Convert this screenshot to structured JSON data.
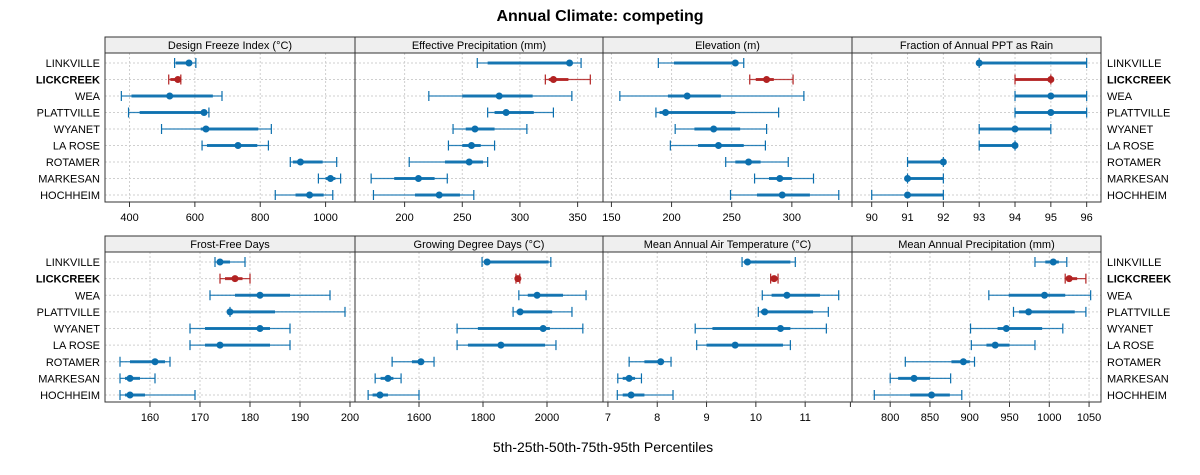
{
  "chart_data": {
    "type": "dot-whisker",
    "title": "Annual Climate: competing",
    "xlabel": "5th-25th-50th-75th-95th Percentiles",
    "stations": [
      "LINKVILLE",
      "LICKCREEK",
      "WEA",
      "PLATTVILLE",
      "WYANET",
      "LA ROSE",
      "ROTAMER",
      "MARKESAN",
      "HOCHHEIM"
    ],
    "highlight_station": "LICKCREEK",
    "colors": {
      "normal": "#0b6fae",
      "highlight": "#b22222",
      "strip_bg": "#efefef",
      "grid": "#cfcfcf"
    },
    "grid": true,
    "panels": [
      {
        "name": "Design Freeze Index (°C)",
        "xlim": [
          325,
          1090
        ],
        "ticks": [
          400,
          600,
          800,
          1000
        ],
        "tick_labels": [
          "400",
          "600",
          "800",
          "1000"
        ],
        "values": [
          [
            538,
            542,
            582,
            590,
            603
          ],
          [
            520,
            525,
            548,
            555,
            557
          ],
          [
            375,
            406,
            523,
            655,
            683
          ],
          [
            397,
            431,
            628,
            633,
            643
          ],
          [
            498,
            618,
            634,
            794,
            834
          ],
          [
            622,
            637,
            732,
            791,
            825
          ],
          [
            892,
            900,
            923,
            991,
            1034
          ],
          [
            978,
            1000,
            1015,
            1030,
            1046
          ],
          [
            846,
            908,
            951,
            994,
            1022
          ]
        ]
      },
      {
        "name": "Effective Precipitation (mm)",
        "xlim": [
          157,
          372
        ],
        "ticks": [
          200,
          250,
          300,
          350
        ],
        "tick_labels": [
          "200",
          "250",
          "300",
          "350"
        ],
        "values": [
          [
            263,
            272,
            343,
            345,
            353
          ],
          [
            322,
            325,
            329,
            342,
            361
          ],
          [
            221,
            250,
            282,
            311,
            345
          ],
          [
            272,
            278,
            288,
            312,
            329
          ],
          [
            242,
            253,
            261,
            278,
            306
          ],
          [
            238,
            250,
            258,
            266,
            278
          ],
          [
            204,
            235,
            256,
            268,
            272
          ],
          [
            171,
            191,
            212,
            226,
            237
          ],
          [
            173,
            209,
            230,
            248,
            260
          ]
        ]
      },
      {
        "name": "Elevation (m),",
        "xlim": [
          143,
          350
        ],
        "ticks": [
          150,
          200,
          250,
          300,
          350
        ],
        "tick_labels": [
          "150",
          "200",
          "250",
          "300",
          ""
        ],
        "values": [
          [
            189,
            202,
            253,
            254,
            260
          ],
          [
            265,
            270,
            279,
            285,
            301
          ],
          [
            157,
            197,
            213,
            241,
            310
          ],
          [
            187,
            190,
            195,
            253,
            289
          ],
          [
            203,
            219,
            235,
            257,
            279
          ],
          [
            199,
            222,
            239,
            260,
            278
          ],
          [
            245,
            253,
            264,
            274,
            297
          ],
          [
            269,
            281,
            290,
            300,
            318
          ],
          [
            249,
            271,
            292,
            315,
            339
          ]
        ]
      },
      {
        "name": "Fraction of Annual PPT as Rain",
        "xlim": [
          89.45,
          96.4
        ],
        "ticks": [
          90,
          91,
          92,
          93,
          94,
          95,
          96
        ],
        "tick_labels": [
          "90",
          "91",
          "92",
          "93",
          "94",
          "95",
          "96"
        ],
        "values": [
          [
            93,
            93,
            93,
            96,
            96
          ],
          [
            94,
            94,
            95,
            95,
            95
          ],
          [
            94,
            94,
            95,
            96,
            96
          ],
          [
            94,
            94,
            95,
            96,
            96
          ],
          [
            93,
            93,
            94,
            95,
            95
          ],
          [
            93,
            93,
            94,
            94,
            94
          ],
          [
            91,
            91,
            92,
            92,
            92
          ],
          [
            91,
            91,
            91,
            92,
            92
          ],
          [
            90,
            91,
            91,
            92,
            92
          ]
        ]
      },
      {
        "name": "Frost-Free Days",
        "xlim": [
          151,
          201
        ],
        "ticks": [
          160,
          170,
          180,
          190,
          200
        ],
        "tick_labels": [
          "160",
          "170",
          "180",
          "190",
          "200"
        ],
        "values": [
          [
            173,
            173.5,
            174,
            176,
            179
          ],
          [
            174,
            175,
            177,
            178.5,
            180
          ],
          [
            172,
            177,
            182,
            188,
            196
          ],
          [
            176,
            176,
            176,
            185,
            199
          ],
          [
            168,
            171,
            182,
            184,
            188
          ],
          [
            168,
            171,
            174,
            184,
            188
          ],
          [
            154,
            156,
            161,
            163,
            164
          ],
          [
            154,
            155,
            156,
            158,
            161
          ],
          [
            154,
            155,
            156,
            159,
            169
          ]
        ]
      },
      {
        "name": "Growing Degree Days (°C)",
        "xlim": [
          1400,
          2175
        ],
        "ticks": [
          1600,
          1800,
          2000
        ],
        "tick_labels": [
          "1600",
          "1800",
          "2000"
        ],
        "values": [
          [
            1797,
            1805,
            1813,
            2005,
            2012
          ],
          [
            1903,
            1906,
            1909,
            1912,
            1915
          ],
          [
            1912,
            1940,
            1969,
            2050,
            2122
          ],
          [
            1894,
            1905,
            1916,
            2016,
            2078
          ],
          [
            1719,
            1784,
            1988,
            2009,
            2112
          ],
          [
            1719,
            1753,
            1856,
            1994,
            2028
          ],
          [
            1516,
            1578,
            1606,
            1612,
            1647
          ],
          [
            1463,
            1480,
            1503,
            1520,
            1544
          ],
          [
            1441,
            1455,
            1478,
            1503,
            1600
          ]
        ]
      },
      {
        "name": "Mean Annual Air Temperature (°C)",
        "xlim": [
          6.9,
          11.95
        ],
        "ticks": [
          7,
          8,
          9,
          10,
          11
        ],
        "tick_labels": [
          "7",
          "8",
          "9",
          "10",
          "11"
        ],
        "values": [
          [
            9.72,
            9.76,
            9.83,
            10.7,
            10.8
          ],
          [
            10.3,
            10.33,
            10.37,
            10.41,
            10.45
          ],
          [
            10.13,
            10.32,
            10.63,
            11.3,
            11.68
          ],
          [
            10.05,
            10.1,
            10.18,
            11.16,
            11.47
          ],
          [
            8.77,
            9.12,
            10.5,
            10.7,
            11.43
          ],
          [
            8.8,
            9.0,
            9.58,
            10.55,
            10.7
          ],
          [
            7.43,
            7.74,
            8.07,
            8.13,
            8.28
          ],
          [
            7.2,
            7.3,
            7.43,
            7.55,
            7.68
          ],
          [
            7.19,
            7.3,
            7.47,
            7.74,
            8.32
          ]
        ]
      },
      {
        "name": "Mean Annual Precipitation (mm)",
        "xlim": [
          752,
          1065
        ],
        "ticks": [
          750,
          800,
          850,
          900,
          950,
          1000,
          1050
        ],
        "tick_labels": [
          "",
          "800",
          "850",
          "900",
          "950",
          "1000",
          "1050"
        ],
        "values": [
          [
            982,
            995,
            1005,
            1012,
            1022
          ],
          [
            1020,
            1022,
            1025,
            1035,
            1046
          ],
          [
            924,
            949,
            994,
            1020,
            1052
          ],
          [
            955,
            962,
            974,
            1032,
            1046
          ],
          [
            901,
            935,
            946,
            991,
            1017
          ],
          [
            902,
            921,
            932,
            950,
            982
          ],
          [
            819,
            877,
            892,
            900,
            906
          ],
          [
            800,
            810,
            830,
            850,
            876
          ],
          [
            780,
            825,
            852,
            875,
            890
          ]
        ]
      }
    ]
  }
}
